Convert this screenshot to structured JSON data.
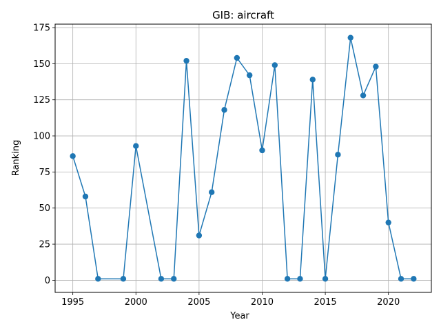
{
  "chart_data": {
    "type": "line",
    "title": "GIB: aircraft",
    "xlabel": "Year",
    "ylabel": "Ranking",
    "xlim": [
      1993.6,
      2023.4
    ],
    "ylim": [
      -8.4,
      177.4
    ],
    "xticks": [
      1995,
      2000,
      2005,
      2010,
      2015,
      2020
    ],
    "yticks": [
      0,
      25,
      50,
      75,
      100,
      125,
      150,
      175
    ],
    "grid": true,
    "color": "#1f77b4",
    "series": [
      {
        "x": [
          1995,
          1996,
          1997,
          1999,
          2000,
          2002,
          2003,
          2004,
          2005,
          2006,
          2007,
          2008,
          2009,
          2010,
          2011,
          2012,
          2013,
          2014,
          2015,
          2016,
          2017,
          2018,
          2019,
          2020,
          2021,
          2022
        ],
        "y": [
          86,
          58,
          1,
          1,
          93,
          1,
          1,
          152,
          31,
          61,
          118,
          154,
          142,
          90,
          149,
          1,
          1,
          139,
          1,
          87,
          168,
          128,
          148,
          40,
          1,
          1
        ]
      }
    ]
  }
}
